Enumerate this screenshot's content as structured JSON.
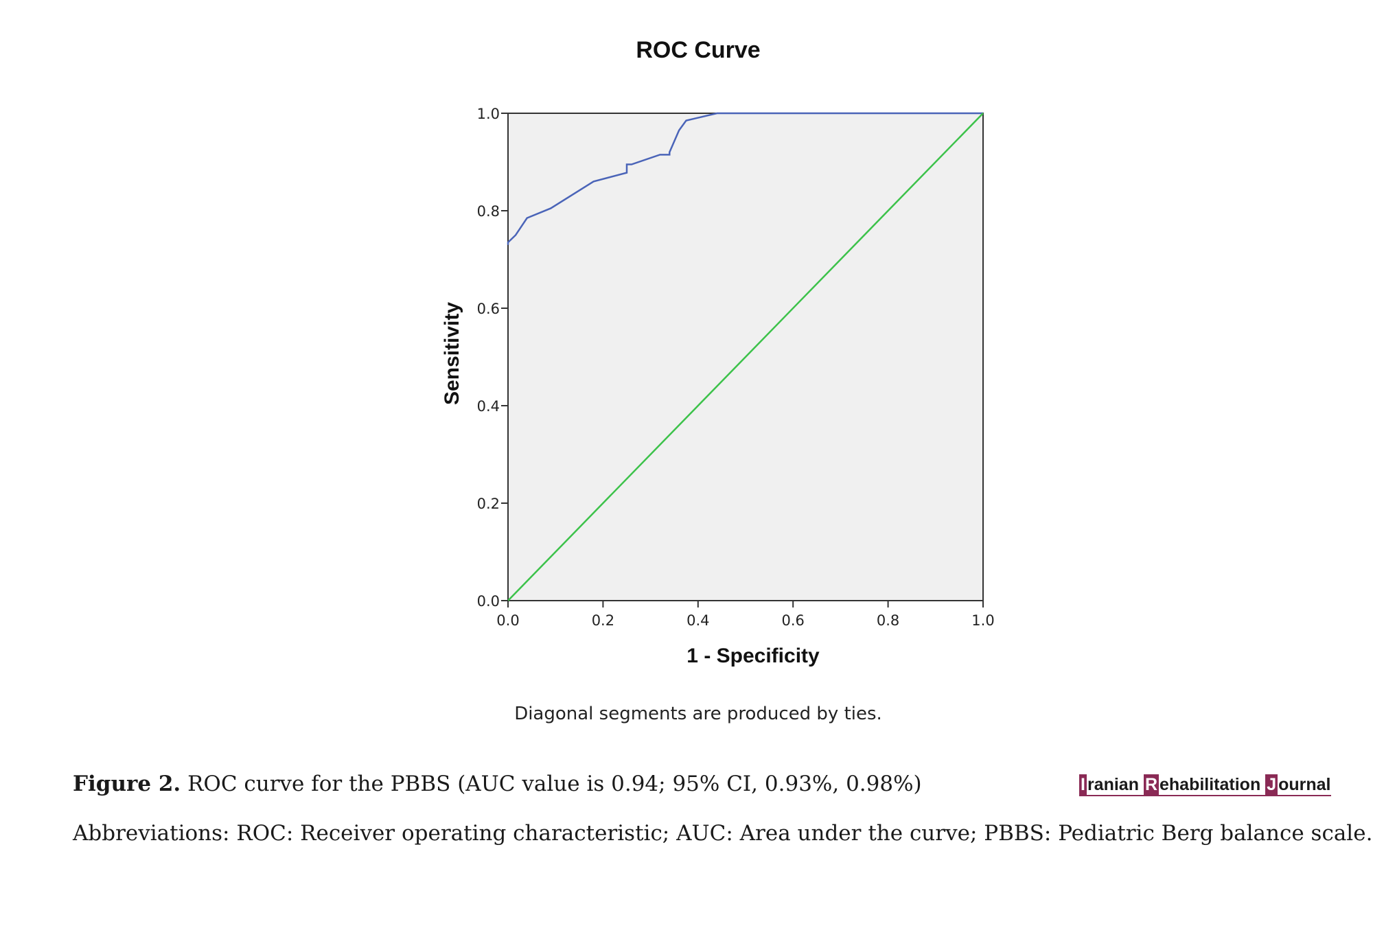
{
  "chart_data": {
    "type": "line",
    "title": "ROC Curve",
    "xlabel": "1 - Specificity",
    "ylabel": "Sensitivity",
    "xlim": [
      0,
      1
    ],
    "ylim": [
      0,
      1
    ],
    "xticks": [
      "0.0",
      "0.2",
      "0.4",
      "0.6",
      "0.8",
      "1.0"
    ],
    "yticks": [
      "0.0",
      "0.2",
      "0.4",
      "0.6",
      "0.8",
      "1.0"
    ],
    "grid": false,
    "plot_background": "#f0f0f0",
    "note": "Diagonal segments are produced by ties.",
    "series": [
      {
        "color": "#4a64b8",
        "x": [
          0.0,
          0.0,
          0.016,
          0.04,
          0.09,
          0.18,
          0.25,
          0.25,
          0.26,
          0.32,
          0.34,
          0.34,
          0.36,
          0.375,
          0.44,
          1.0
        ],
        "y": [
          0.73,
          0.735,
          0.75,
          0.785,
          0.805,
          0.86,
          0.878,
          0.895,
          0.895,
          0.915,
          0.915,
          0.92,
          0.965,
          0.985,
          1.0,
          1.0
        ]
      },
      {
        "color": "#3cc24a",
        "x": [
          0,
          1
        ],
        "y": [
          0,
          1
        ]
      }
    ]
  },
  "caption": {
    "figure_label": "Figure 2.",
    "figure_text": " ROC curve for the PBBS (AUC value is 0.94; 95% CI, 0.93%, 0.98%)",
    "abbreviations": "Abbreviations: ROC: Receiver operating characteristic; AUC: Area under the curve; PBBS:  Pediatric Berg balance scale."
  },
  "journal": {
    "i": "I",
    "ranian": "ranian ",
    "r": "R",
    "ehabilitation": "ehabilitation ",
    "j": "J",
    "ournal": "ournal"
  }
}
